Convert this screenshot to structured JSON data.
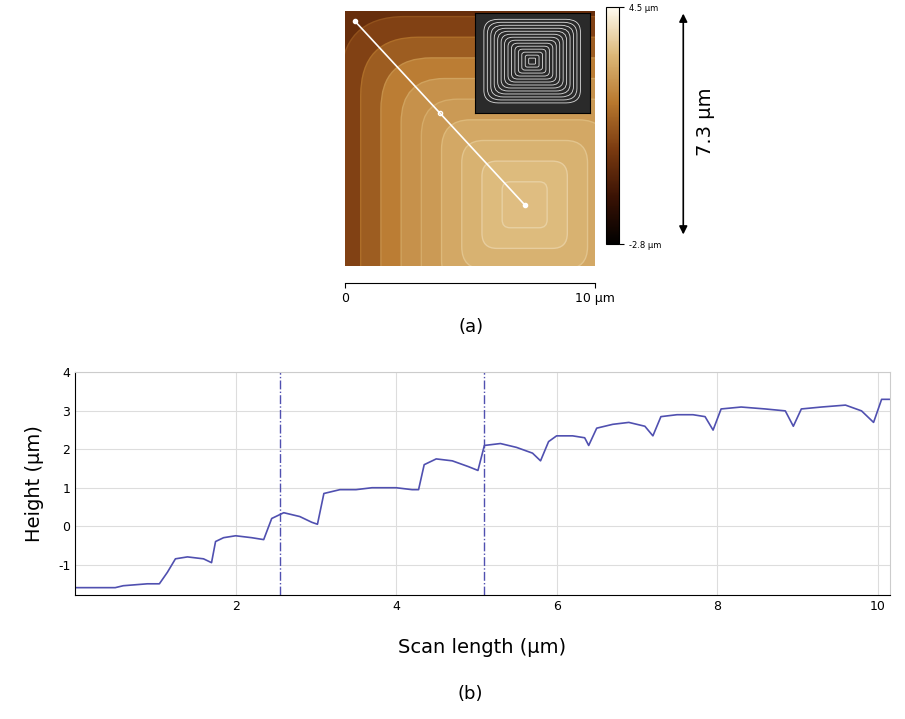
{
  "chart_data": [
    {
      "type": "image",
      "panel_label": "(a)",
      "xlim": [
        0,
        10
      ],
      "ylim": [
        0,
        10
      ],
      "xticks": [
        {
          "value": 0,
          "label": "0"
        },
        {
          "value": 10,
          "label": "10 µm"
        }
      ],
      "tick_labels": "x",
      "colorbar": {
        "range": [
          -2.8,
          4.5
        ],
        "ticks": [
          {
            "value": 4.5,
            "label": "4.5 µm"
          },
          {
            "value": -2.8,
            "label": "-2.8 µm"
          }
        ]
      },
      "annotation": "7.3 µm",
      "terrace_heights": [
        -1.6,
        -0.85,
        -0.3,
        0.3,
        0.95,
        1.7,
        2.15,
        2.35,
        2.65,
        2.9,
        3.1,
        3.15
      ],
      "profile_line": {
        "x": [
          0.4,
          7.2
        ],
        "y": [
          9.6,
          2.4
        ]
      }
    },
    {
      "type": "line",
      "panel_label": "(b)",
      "x_label": "Scan length (µm)",
      "y_label": "Height (µm)",
      "x": [
        0.0,
        0.5,
        0.6,
        0.9,
        1.05,
        1.15,
        1.25,
        1.4,
        1.6,
        1.7,
        1.75,
        1.85,
        2.0,
        2.2,
        2.35,
        2.45,
        2.6,
        2.8,
        2.95,
        3.02,
        3.1,
        3.3,
        3.5,
        3.7,
        4.0,
        4.2,
        4.28,
        4.35,
        4.5,
        4.7,
        4.9,
        5.02,
        5.1,
        5.3,
        5.5,
        5.7,
        5.8,
        5.9,
        6.0,
        6.2,
        6.35,
        6.4,
        6.5,
        6.7,
        6.9,
        7.1,
        7.2,
        7.3,
        7.5,
        7.7,
        7.85,
        7.95,
        8.05,
        8.3,
        8.6,
        8.85,
        8.95,
        9.05,
        9.3,
        9.6,
        9.8,
        9.95,
        10.05,
        10.15
      ],
      "values": [
        -1.6,
        -1.6,
        -1.55,
        -1.5,
        -1.5,
        -1.2,
        -0.85,
        -0.8,
        -0.85,
        -0.95,
        -0.4,
        -0.3,
        -0.25,
        -0.3,
        -0.35,
        0.2,
        0.35,
        0.25,
        0.1,
        0.05,
        0.85,
        0.95,
        0.95,
        1.0,
        1.0,
        0.95,
        0.95,
        1.6,
        1.75,
        1.7,
        1.55,
        1.45,
        2.1,
        2.15,
        2.05,
        1.9,
        1.7,
        2.2,
        2.35,
        2.35,
        2.3,
        2.1,
        2.55,
        2.65,
        2.7,
        2.6,
        2.35,
        2.85,
        2.9,
        2.9,
        2.85,
        2.5,
        3.05,
        3.1,
        3.05,
        3.0,
        2.6,
        3.05,
        3.1,
        3.15,
        3.0,
        2.7,
        3.3,
        3.3
      ],
      "color": "#5050b0",
      "vlines": [
        2.55,
        5.1
      ],
      "xlim": [
        0,
        10.15
      ],
      "ylim": [
        -1.8,
        4.0
      ],
      "xticks": [
        2,
        4,
        6,
        8,
        10
      ],
      "yticks": [
        -1,
        0,
        1,
        2,
        3,
        4
      ],
      "grid": true
    }
  ]
}
